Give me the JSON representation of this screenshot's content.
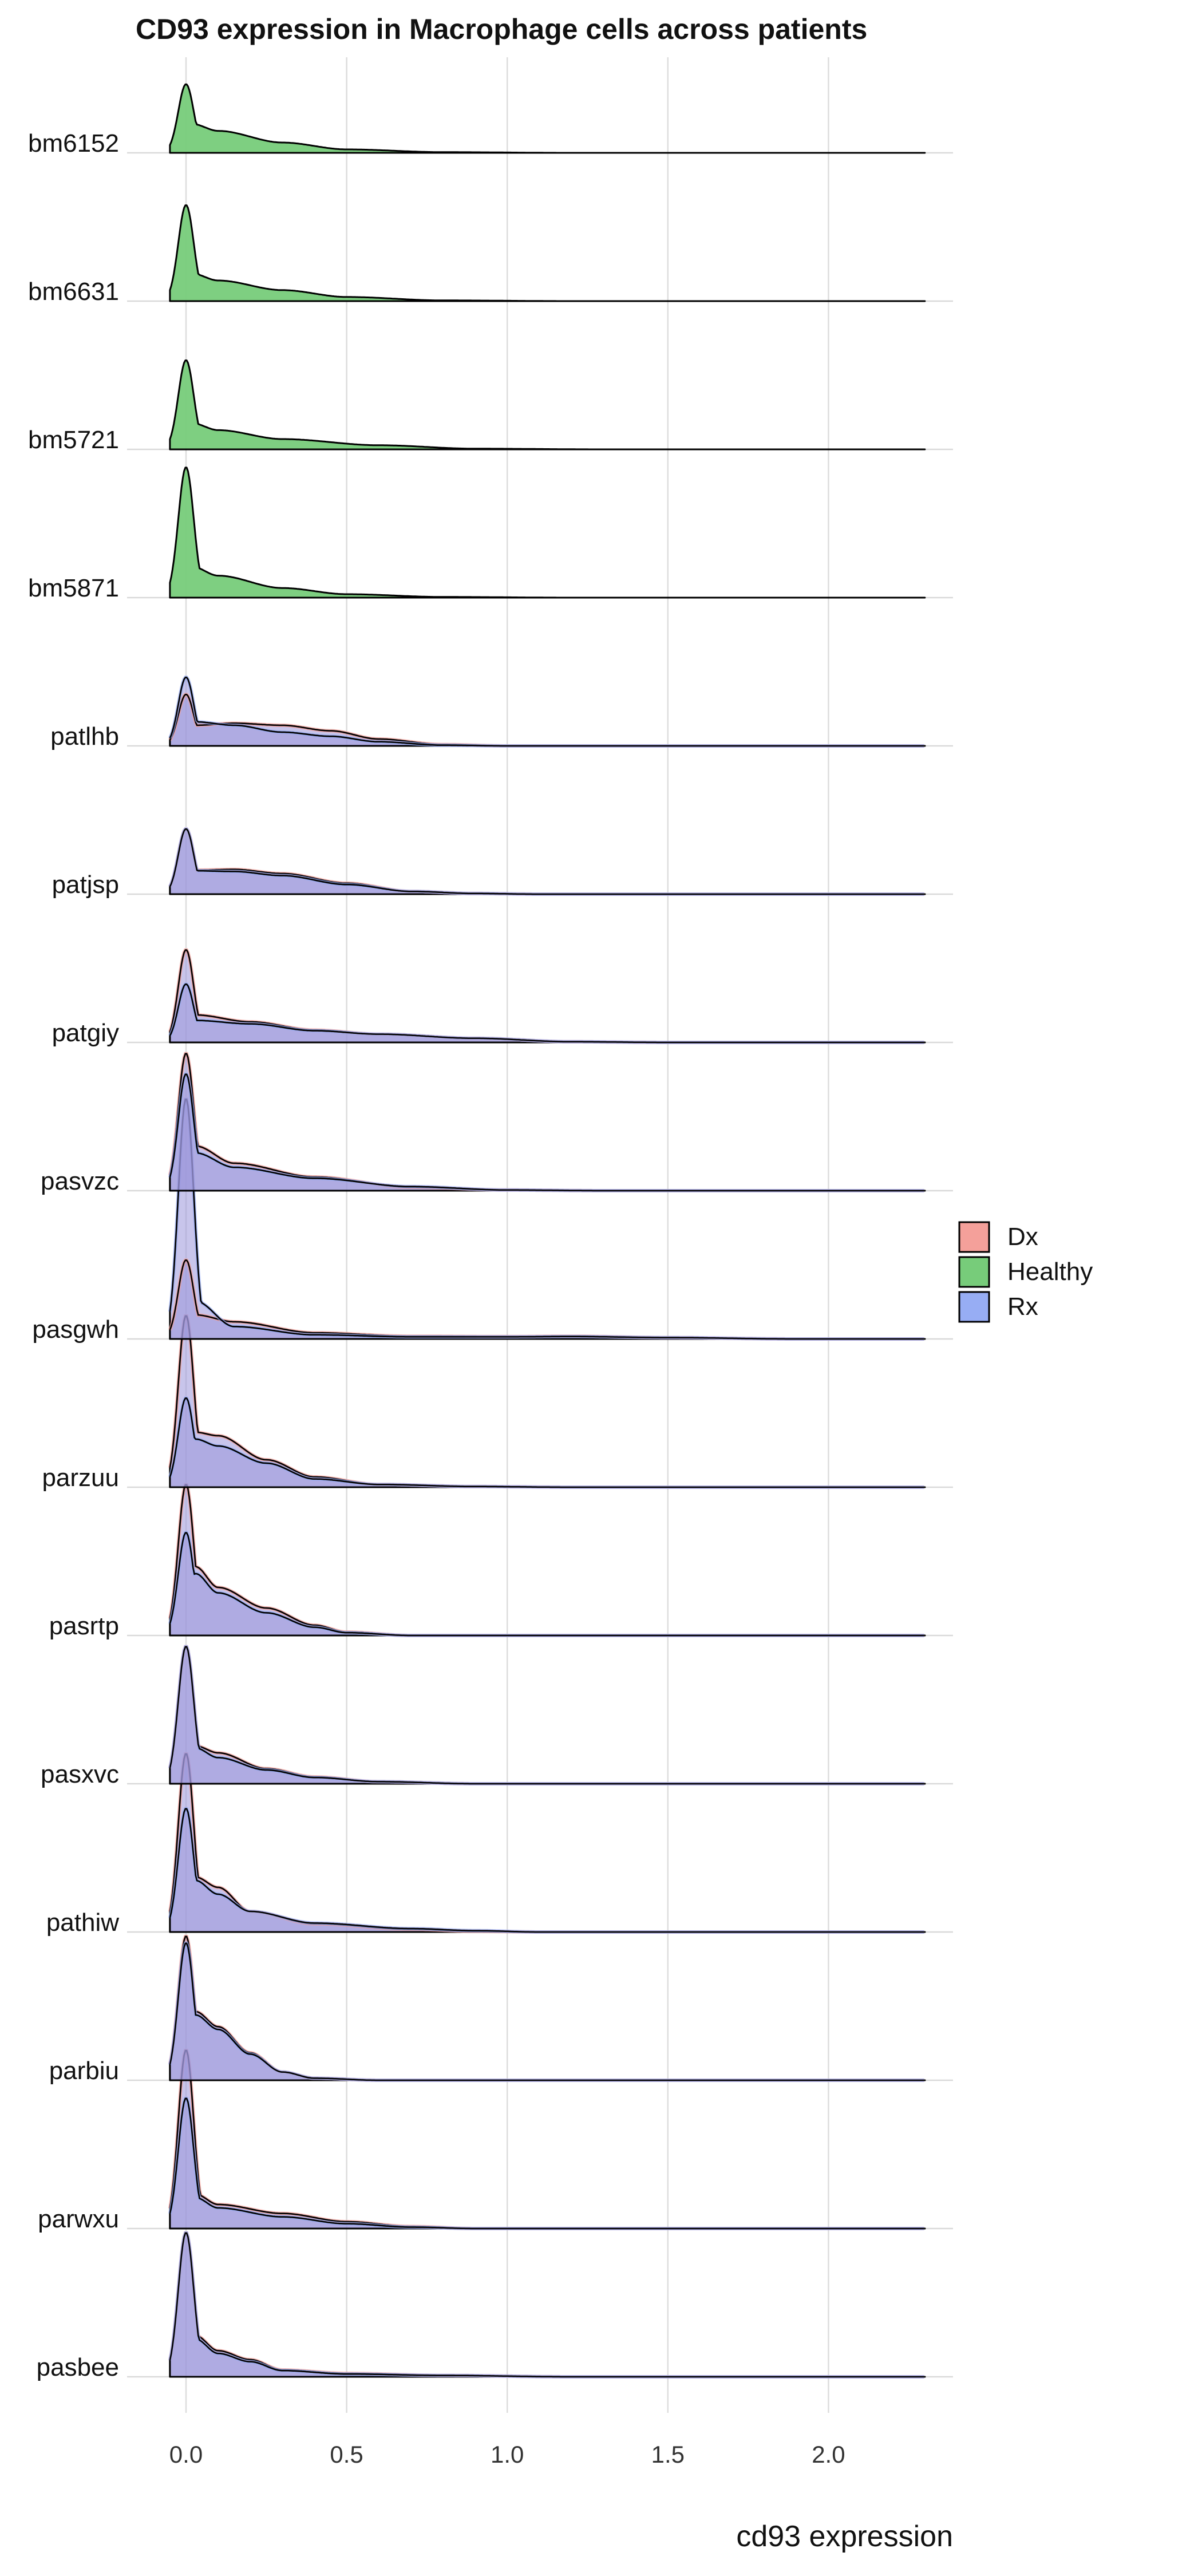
{
  "chart_data": {
    "type": "ridgeline",
    "title": "CD93 expression in Macrophage cells across patients",
    "xlabel": "cd93 expression",
    "ylabel": "",
    "xlim": [
      -0.05,
      2.3
    ],
    "x_ticks": [
      0.0,
      0.5,
      1.0,
      1.5,
      2.0
    ],
    "x_tick_labels": [
      "0.0",
      "0.5",
      "1.0",
      "1.5",
      "2.0"
    ],
    "grid": true,
    "legend": {
      "position": "right",
      "entries": [
        {
          "name": "Dx",
          "color": "#F4A09A"
        },
        {
          "name": "Healthy",
          "color": "#77CC7A"
        },
        {
          "name": "Rx",
          "color": "#97ADF4"
        }
      ]
    },
    "overlap_color": "#9B95DB",
    "row_order_top_to_bottom": [
      "bm6152",
      "bm6631",
      "bm5721",
      "bm5871",
      "patlhb",
      "patjsp",
      "patgiy",
      "pasvzc",
      "pasgwh",
      "parzuu",
      "pasrtp",
      "pasxvc",
      "pathiw",
      "parbiu",
      "parwxu",
      "pasbee"
    ],
    "rows": [
      {
        "name": "bm6152",
        "series": [
          {
            "group": "Healthy",
            "peak_x": 0.0,
            "peak": 1.0,
            "tail": [
              [
                0.02,
                0.42
              ],
              [
                0.1,
                0.32
              ],
              [
                0.3,
                0.15
              ],
              [
                0.5,
                0.05
              ],
              [
                0.8,
                0.01
              ],
              [
                1.2,
                0.0
              ]
            ]
          }
        ]
      },
      {
        "name": "bm6631",
        "series": [
          {
            "group": "Healthy",
            "peak_x": 0.0,
            "peak": 1.4,
            "tail": [
              [
                0.02,
                0.4
              ],
              [
                0.1,
                0.3
              ],
              [
                0.3,
                0.16
              ],
              [
                0.5,
                0.06
              ],
              [
                0.8,
                0.01
              ],
              [
                1.2,
                0.0
              ]
            ]
          }
        ]
      },
      {
        "name": "bm5721",
        "series": [
          {
            "group": "Healthy",
            "peak_x": 0.0,
            "peak": 1.3,
            "tail": [
              [
                0.02,
                0.38
              ],
              [
                0.1,
                0.28
              ],
              [
                0.3,
                0.15
              ],
              [
                0.6,
                0.06
              ],
              [
                0.9,
                0.01
              ],
              [
                1.3,
                0.0
              ]
            ]
          }
        ]
      },
      {
        "name": "bm5871",
        "series": [
          {
            "group": "Healthy",
            "peak_x": 0.0,
            "peak": 1.9,
            "tail": [
              [
                0.02,
                0.45
              ],
              [
                0.1,
                0.32
              ],
              [
                0.3,
                0.14
              ],
              [
                0.5,
                0.05
              ],
              [
                0.8,
                0.01
              ],
              [
                1.2,
                0.0
              ]
            ]
          }
        ]
      },
      {
        "name": "patlhb",
        "series": [
          {
            "group": "Dx",
            "peak_x": 0.0,
            "peak": 0.75,
            "tail": [
              [
                0.03,
                0.3
              ],
              [
                0.15,
                0.33
              ],
              [
                0.3,
                0.3
              ],
              [
                0.45,
                0.22
              ],
              [
                0.6,
                0.1
              ],
              [
                0.8,
                0.02
              ],
              [
                1.0,
                0.0
              ]
            ]
          },
          {
            "group": "Rx",
            "peak_x": 0.0,
            "peak": 1.0,
            "tail": [
              [
                0.03,
                0.35
              ],
              [
                0.15,
                0.3
              ],
              [
                0.3,
                0.2
              ],
              [
                0.45,
                0.14
              ],
              [
                0.6,
                0.06
              ],
              [
                0.8,
                0.01
              ],
              [
                1.0,
                0.0
              ]
            ]
          }
        ]
      },
      {
        "name": "patjsp",
        "series": [
          {
            "group": "Dx",
            "peak_x": 0.0,
            "peak": 0.95,
            "tail": [
              [
                0.03,
                0.35
              ],
              [
                0.15,
                0.36
              ],
              [
                0.3,
                0.3
              ],
              [
                0.5,
                0.16
              ],
              [
                0.7,
                0.04
              ],
              [
                0.9,
                0.01
              ],
              [
                1.1,
                0.0
              ]
            ]
          },
          {
            "group": "Rx",
            "peak_x": 0.0,
            "peak": 0.95,
            "tail": [
              [
                0.03,
                0.34
              ],
              [
                0.15,
                0.33
              ],
              [
                0.3,
                0.27
              ],
              [
                0.5,
                0.14
              ],
              [
                0.7,
                0.04
              ],
              [
                0.9,
                0.01
              ],
              [
                1.1,
                0.0
              ]
            ]
          }
        ]
      },
      {
        "name": "patgiy",
        "series": [
          {
            "group": "Dx",
            "peak_x": 0.0,
            "peak": 1.35,
            "tail": [
              [
                0.03,
                0.4
              ],
              [
                0.2,
                0.3
              ],
              [
                0.4,
                0.18
              ],
              [
                0.6,
                0.12
              ],
              [
                0.9,
                0.06
              ],
              [
                1.2,
                0.01
              ],
              [
                1.5,
                0.0
              ]
            ]
          },
          {
            "group": "Rx",
            "peak_x": 0.0,
            "peak": 0.85,
            "tail": [
              [
                0.03,
                0.32
              ],
              [
                0.2,
                0.27
              ],
              [
                0.4,
                0.17
              ],
              [
                0.6,
                0.12
              ],
              [
                0.9,
                0.06
              ],
              [
                1.2,
                0.01
              ],
              [
                1.5,
                0.0
              ]
            ]
          }
        ]
      },
      {
        "name": "pasvzc",
        "series": [
          {
            "group": "Dx",
            "peak_x": 0.0,
            "peak": 2.0,
            "tail": [
              [
                0.03,
                0.65
              ],
              [
                0.15,
                0.4
              ],
              [
                0.4,
                0.2
              ],
              [
                0.7,
                0.05
              ],
              [
                1.0,
                0.01
              ],
              [
                1.3,
                0.0
              ]
            ]
          },
          {
            "group": "Rx",
            "peak_x": 0.0,
            "peak": 1.7,
            "tail": [
              [
                0.03,
                0.55
              ],
              [
                0.15,
                0.34
              ],
              [
                0.4,
                0.18
              ],
              [
                0.7,
                0.06
              ],
              [
                1.0,
                0.01
              ],
              [
                1.3,
                0.0
              ]
            ]
          }
        ]
      },
      {
        "name": "pasgwh",
        "series": [
          {
            "group": "Dx",
            "peak_x": 0.0,
            "peak": 1.15,
            "tail": [
              [
                0.03,
                0.35
              ],
              [
                0.15,
                0.25
              ],
              [
                0.4,
                0.09
              ],
              [
                0.7,
                0.04
              ],
              [
                1.0,
                0.035
              ],
              [
                1.2,
                0.04
              ],
              [
                1.5,
                0.02
              ],
              [
                1.9,
                0.0
              ]
            ]
          },
          {
            "group": "Rx",
            "peak_x": 0.0,
            "peak": 3.5,
            "tail": [
              [
                0.03,
                0.55
              ],
              [
                0.15,
                0.18
              ],
              [
                0.4,
                0.06
              ],
              [
                0.7,
                0.03
              ],
              [
                1.0,
                0.03
              ],
              [
                1.2,
                0.035
              ],
              [
                1.5,
                0.02
              ],
              [
                1.9,
                0.0
              ]
            ]
          }
        ]
      },
      {
        "name": "parzuu",
        "series": [
          {
            "group": "Dx",
            "peak_x": 0.0,
            "peak": 2.5,
            "tail": [
              [
                0.03,
                0.8
              ],
              [
                0.1,
                0.75
              ],
              [
                0.25,
                0.4
              ],
              [
                0.4,
                0.15
              ],
              [
                0.6,
                0.04
              ],
              [
                0.9,
                0.01
              ],
              [
                1.2,
                0.0
              ]
            ]
          },
          {
            "group": "Rx",
            "peak_x": 0.0,
            "peak": 1.3,
            "tail": [
              [
                0.03,
                0.7
              ],
              [
                0.1,
                0.6
              ],
              [
                0.25,
                0.35
              ],
              [
                0.4,
                0.12
              ],
              [
                0.6,
                0.04
              ],
              [
                0.9,
                0.01
              ],
              [
                1.2,
                0.0
              ]
            ]
          }
        ]
      },
      {
        "name": "pasrtp",
        "series": [
          {
            "group": "Dx",
            "peak_x": 0.0,
            "peak": 2.2,
            "tail": [
              [
                0.03,
                1.0
              ],
              [
                0.1,
                0.7
              ],
              [
                0.25,
                0.4
              ],
              [
                0.4,
                0.15
              ],
              [
                0.5,
                0.05
              ],
              [
                0.7,
                0.0
              ]
            ]
          },
          {
            "group": "Rx",
            "peak_x": 0.0,
            "peak": 1.5,
            "tail": [
              [
                0.03,
                0.9
              ],
              [
                0.1,
                0.62
              ],
              [
                0.25,
                0.33
              ],
              [
                0.4,
                0.12
              ],
              [
                0.5,
                0.04
              ],
              [
                0.7,
                0.0
              ]
            ]
          }
        ]
      },
      {
        "name": "pasxvc",
        "series": [
          {
            "group": "Dx",
            "peak_x": 0.0,
            "peak": 2.0,
            "tail": [
              [
                0.03,
                0.55
              ],
              [
                0.1,
                0.45
              ],
              [
                0.25,
                0.22
              ],
              [
                0.4,
                0.1
              ],
              [
                0.6,
                0.03
              ],
              [
                0.9,
                0.0
              ]
            ]
          },
          {
            "group": "Rx",
            "peak_x": 0.0,
            "peak": 2.0,
            "tail": [
              [
                0.03,
                0.52
              ],
              [
                0.1,
                0.38
              ],
              [
                0.25,
                0.2
              ],
              [
                0.4,
                0.09
              ],
              [
                0.6,
                0.03
              ],
              [
                0.9,
                0.0
              ]
            ]
          }
        ]
      },
      {
        "name": "pathiw",
        "series": [
          {
            "group": "Dx",
            "peak_x": 0.0,
            "peak": 2.6,
            "tail": [
              [
                0.03,
                0.8
              ],
              [
                0.1,
                0.65
              ],
              [
                0.2,
                0.3
              ],
              [
                0.4,
                0.12
              ],
              [
                0.7,
                0.04
              ],
              [
                0.9,
                0.01
              ],
              [
                1.1,
                0.0
              ]
            ]
          },
          {
            "group": "Rx",
            "peak_x": 0.0,
            "peak": 1.8,
            "tail": [
              [
                0.03,
                0.75
              ],
              [
                0.1,
                0.55
              ],
              [
                0.2,
                0.3
              ],
              [
                0.4,
                0.13
              ],
              [
                0.7,
                0.05
              ],
              [
                0.9,
                0.02
              ],
              [
                1.1,
                0.0
              ]
            ]
          }
        ]
      },
      {
        "name": "parbiu",
        "series": [
          {
            "group": "Dx",
            "peak_x": 0.0,
            "peak": 2.1,
            "tail": [
              [
                0.03,
                1.0
              ],
              [
                0.1,
                0.78
              ],
              [
                0.2,
                0.4
              ],
              [
                0.3,
                0.12
              ],
              [
                0.4,
                0.03
              ],
              [
                0.6,
                0.0
              ]
            ]
          },
          {
            "group": "Rx",
            "peak_x": 0.0,
            "peak": 2.0,
            "tail": [
              [
                0.03,
                0.95
              ],
              [
                0.1,
                0.74
              ],
              [
                0.2,
                0.38
              ],
              [
                0.3,
                0.12
              ],
              [
                0.4,
                0.03
              ],
              [
                0.6,
                0.0
              ]
            ]
          }
        ]
      },
      {
        "name": "parwxu",
        "series": [
          {
            "group": "Dx",
            "peak_x": 0.0,
            "peak": 2.6,
            "tail": [
              [
                0.03,
                0.5
              ],
              [
                0.1,
                0.35
              ],
              [
                0.3,
                0.22
              ],
              [
                0.5,
                0.1
              ],
              [
                0.7,
                0.03
              ],
              [
                0.9,
                0.0
              ]
            ]
          },
          {
            "group": "Rx",
            "peak_x": 0.0,
            "peak": 1.9,
            "tail": [
              [
                0.03,
                0.45
              ],
              [
                0.1,
                0.3
              ],
              [
                0.3,
                0.17
              ],
              [
                0.5,
                0.07
              ],
              [
                0.7,
                0.02
              ],
              [
                0.9,
                0.0
              ]
            ]
          }
        ]
      },
      {
        "name": "pasbee",
        "series": [
          {
            "group": "Dx",
            "peak_x": 0.0,
            "peak": 2.1,
            "tail": [
              [
                0.03,
                0.6
              ],
              [
                0.1,
                0.38
              ],
              [
                0.2,
                0.25
              ],
              [
                0.3,
                0.1
              ],
              [
                0.5,
                0.05
              ],
              [
                0.8,
                0.02
              ],
              [
                1.2,
                0.0
              ]
            ]
          },
          {
            "group": "Rx",
            "peak_x": 0.0,
            "peak": 2.1,
            "tail": [
              [
                0.03,
                0.55
              ],
              [
                0.1,
                0.34
              ],
              [
                0.2,
                0.22
              ],
              [
                0.3,
                0.09
              ],
              [
                0.5,
                0.04
              ],
              [
                0.8,
                0.02
              ],
              [
                1.2,
                0.0
              ]
            ]
          }
        ]
      }
    ]
  }
}
